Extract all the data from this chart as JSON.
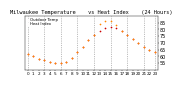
{
  "title": "Milwaukee Temperature    vs Heat Index    (24 Hours)",
  "hours": [
    0,
    1,
    2,
    3,
    4,
    5,
    6,
    7,
    8,
    9,
    10,
    11,
    12,
    13,
    14,
    15,
    16,
    17,
    18,
    19,
    20,
    21,
    22,
    23
  ],
  "temp": [
    62,
    60,
    58,
    57,
    56,
    55,
    55,
    56,
    59,
    63,
    67,
    72,
    76,
    79,
    81,
    82,
    81,
    79,
    76,
    73,
    70,
    67,
    65,
    63
  ],
  "heat_index": [
    62,
    60,
    58,
    57,
    56,
    55,
    55,
    56,
    59,
    63,
    67,
    72,
    76,
    84,
    86,
    86,
    83,
    79,
    76,
    73,
    70,
    67,
    65,
    63
  ],
  "temp_color": "#cc0000",
  "heat_color": "#ff8800",
  "black_color": "#000000",
  "bg_color": "#ffffff",
  "grid_color": "#888888",
  "ylim_min": 50,
  "ylim_max": 90,
  "yticks": [
    55,
    60,
    65,
    70,
    75,
    80,
    85
  ],
  "ylabel_fontsize": 3.5,
  "xlabel_fontsize": 3.0,
  "title_fontsize": 3.8,
  "marker_size": 1.5,
  "vgrid_hours": [
    0,
    3,
    6,
    9,
    12,
    15,
    18,
    21,
    23
  ],
  "legend_label_temp": "Outdoor Temp",
  "legend_label_heat": "Heat Index"
}
